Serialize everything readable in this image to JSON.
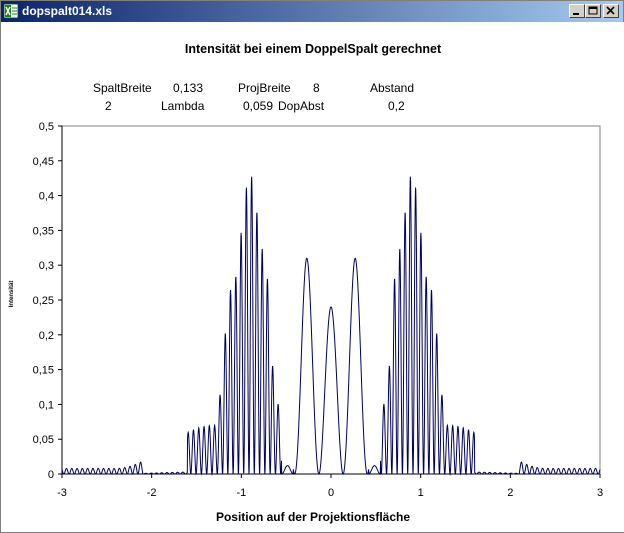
{
  "window": {
    "title": "dopspalt014.xls",
    "icon": "excel-icon",
    "titlebar_color": "#0a246a"
  },
  "chart_data": {
    "type": "line",
    "title": "Intensität bei einem DoppelSpalt gerechnet",
    "xlabel": "Position auf der Projektionsfläche",
    "ylabel": "Intensität",
    "xlim": [
      -3,
      3
    ],
    "ylim": [
      0,
      0.5
    ],
    "xticks": [
      "-3",
      "-2",
      "-1",
      "0",
      "1",
      "2",
      "3"
    ],
    "yticks": [
      "0",
      "0,05",
      "0,1",
      "0,15",
      "0,2",
      "0,25",
      "0,3",
      "0,35",
      "0,4",
      "0,45",
      "0,5"
    ],
    "grid": false,
    "line_color": "#000060",
    "parameters_row1": [
      {
        "label": "SpaltBreite",
        "value": "0,133"
      },
      {
        "label": "ProjBreite",
        "value": "8"
      },
      {
        "label": "Abstand",
        "value": ""
      }
    ],
    "parameters_row2": [
      {
        "label": "",
        "value": "2"
      },
      {
        "label": "Lambda",
        "value": "0,059"
      },
      {
        "label": "DopAbst",
        "value": "0,2"
      }
    ],
    "series": [
      {
        "envelope_peaks_x": [
          -2.75,
          -2.4,
          -1.3,
          -1.1,
          -0.9,
          -0.75,
          -0.6,
          -0.27,
          0.0,
          0.27,
          0.6,
          0.75,
          0.9,
          1.1,
          1.3,
          2.4,
          2.75
        ],
        "envelope_peaks_y": [
          0.008,
          0.008,
          0.07,
          0.27,
          0.43,
          0.32,
          0.1,
          0.31,
          0.24,
          0.31,
          0.1,
          0.32,
          0.43,
          0.27,
          0.07,
          0.008,
          0.008
        ],
        "fringe_period": 0.059
      }
    ]
  }
}
